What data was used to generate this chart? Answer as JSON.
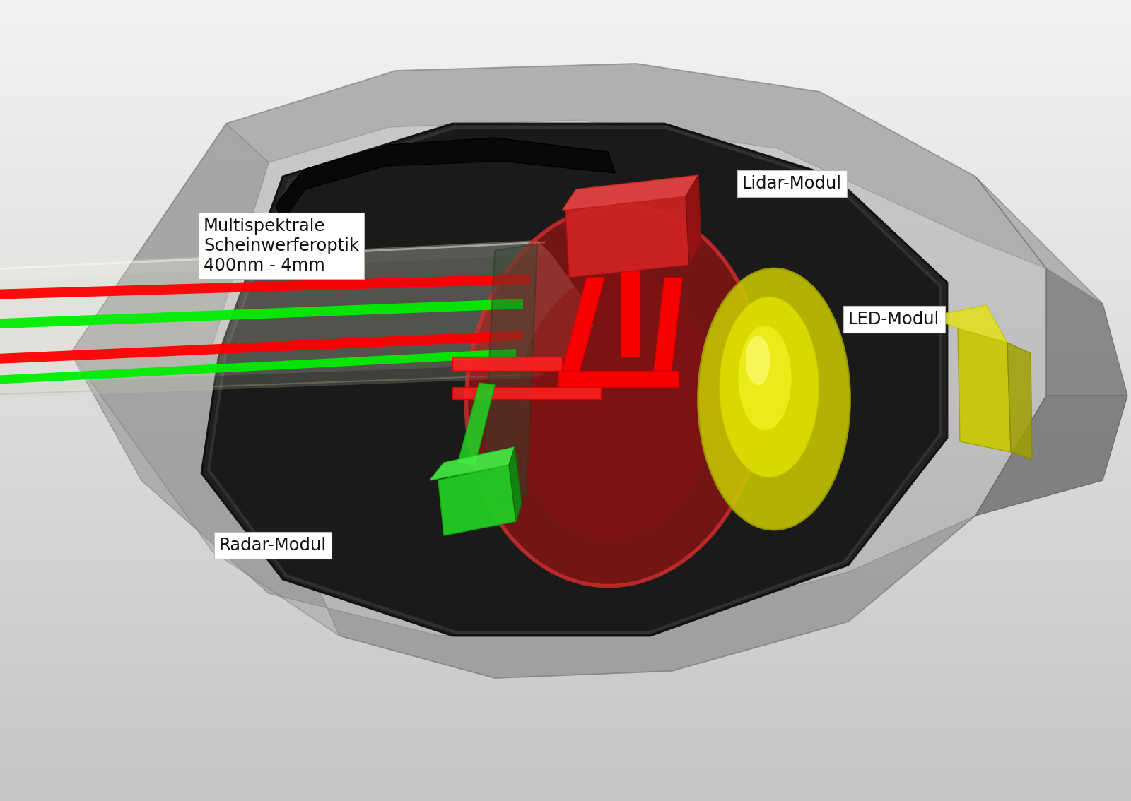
{
  "fig_width": 16.0,
  "fig_height": 11.34,
  "label_multispektrale": "Multispektrale\nScheinwerferoptik\n400nm - 4mm",
  "label_lidar": "Lidar-Modul",
  "label_led": "LED-Modul",
  "label_radar": "Radar-Modul",
  "label_box_fc": "#ffffff",
  "label_text_color": "#111111",
  "beam_red_color": "#ff0000",
  "beam_green_color": "#00ee00"
}
